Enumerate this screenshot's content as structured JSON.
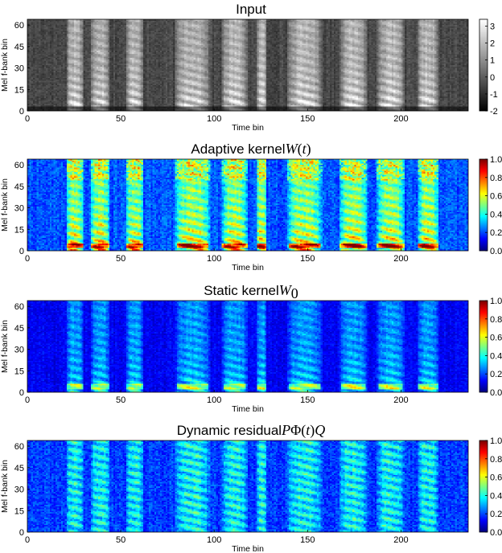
{
  "chart_data": [
    {
      "type": "heatmap",
      "title": "Input",
      "title_math": [],
      "xlabel": "Time bin",
      "ylabel": "Mel f-bank bin",
      "xlim": [
        0,
        236
      ],
      "ylim": [
        0,
        64
      ],
      "xticks": [
        0,
        50,
        100,
        150,
        200
      ],
      "yticks": [
        0,
        15,
        30,
        45,
        60
      ],
      "colormap": "gray",
      "clim": [
        -2,
        3.4
      ],
      "cbar_ticks": [
        "3",
        "2",
        "1",
        "0",
        "-1",
        "-2"
      ],
      "cbar_tick_values": [
        3,
        2,
        1,
        0,
        -1,
        -2
      ]
    },
    {
      "type": "heatmap",
      "title": "Adaptive kernel",
      "title_math": [
        {
          "t": "W",
          "s": "i"
        },
        {
          "t": "(",
          "s": "n"
        },
        {
          "t": "t",
          "s": "i"
        },
        {
          "t": ")",
          "s": "n"
        }
      ],
      "xlabel": "Time bin",
      "ylabel": "Mel f-bank bin",
      "xlim": [
        0,
        236
      ],
      "ylim": [
        0,
        64
      ],
      "xticks": [
        0,
        50,
        100,
        150,
        200
      ],
      "yticks": [
        0,
        15,
        30,
        45,
        60
      ],
      "colormap": "jet",
      "clim": [
        0,
        1
      ],
      "cbar_ticks": [
        "1.0",
        "0.8",
        "0.6",
        "0.4",
        "0.2",
        "0.0"
      ],
      "cbar_tick_values": [
        1.0,
        0.8,
        0.6,
        0.4,
        0.2,
        0.0
      ]
    },
    {
      "type": "heatmap",
      "title": "Static kernel",
      "title_math": [
        {
          "t": "W",
          "s": "i"
        },
        {
          "t": "0",
          "s": "sub"
        }
      ],
      "xlabel": "Time bin",
      "ylabel": "Mel f-bank bin",
      "xlim": [
        0,
        236
      ],
      "ylim": [
        0,
        64
      ],
      "xticks": [
        0,
        50,
        100,
        150,
        200
      ],
      "yticks": [
        0,
        15,
        30,
        45,
        60
      ],
      "colormap": "jet",
      "clim": [
        0,
        1
      ],
      "cbar_ticks": [
        "1.0",
        "0.8",
        "0.6",
        "0.4",
        "0.2",
        "0.0"
      ],
      "cbar_tick_values": [
        1.0,
        0.8,
        0.6,
        0.4,
        0.2,
        0.0
      ]
    },
    {
      "type": "heatmap",
      "title": "Dynamic residual",
      "title_math": [
        {
          "t": "P",
          "s": "i"
        },
        {
          "t": "Φ",
          "s": "n"
        },
        {
          "t": "(",
          "s": "n"
        },
        {
          "t": "t",
          "s": "i"
        },
        {
          "t": ")",
          "s": "n"
        },
        {
          "t": "Q",
          "s": "i"
        }
      ],
      "xlabel": "Time bin",
      "ylabel": "Mel f-bank bin",
      "xlim": [
        0,
        236
      ],
      "ylim": [
        0,
        64
      ],
      "xticks": [
        0,
        50,
        100,
        150,
        200
      ],
      "yticks": [
        0,
        15,
        30,
        45,
        60
      ],
      "colormap": "jet",
      "clim": [
        0,
        1
      ],
      "cbar_ticks": [
        "1.0",
        "0.8",
        "0.6",
        "0.4",
        "0.2",
        "0.0"
      ],
      "cbar_tick_values": [
        1.0,
        0.8,
        0.6,
        0.4,
        0.2,
        0.0
      ]
    }
  ]
}
